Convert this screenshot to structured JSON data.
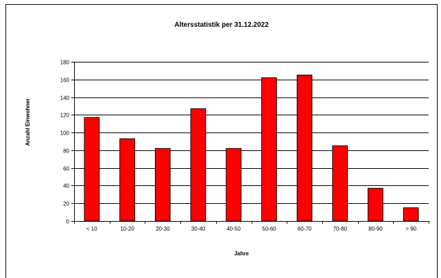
{
  "chart_data": {
    "type": "bar",
    "title": "Altersstatistik per 31.12.2022",
    "xlabel": "Jahre",
    "ylabel": "Anzahl Einwohner",
    "categories": [
      "< 10",
      "10-20",
      "20-30",
      "30-40",
      "40-50",
      "50-60",
      "60-70",
      "70-80",
      "80-90",
      "> 90"
    ],
    "values": [
      117,
      93,
      82,
      127,
      82,
      162,
      165,
      85,
      37,
      15
    ],
    "ylim": [
      0,
      180
    ],
    "ytick_step": 20,
    "grid": true,
    "legend": "none",
    "colors": {
      "bar_fill": "#ff0000",
      "bar_stroke": "#000000",
      "grid": "#000000",
      "frame": "#000000"
    }
  }
}
